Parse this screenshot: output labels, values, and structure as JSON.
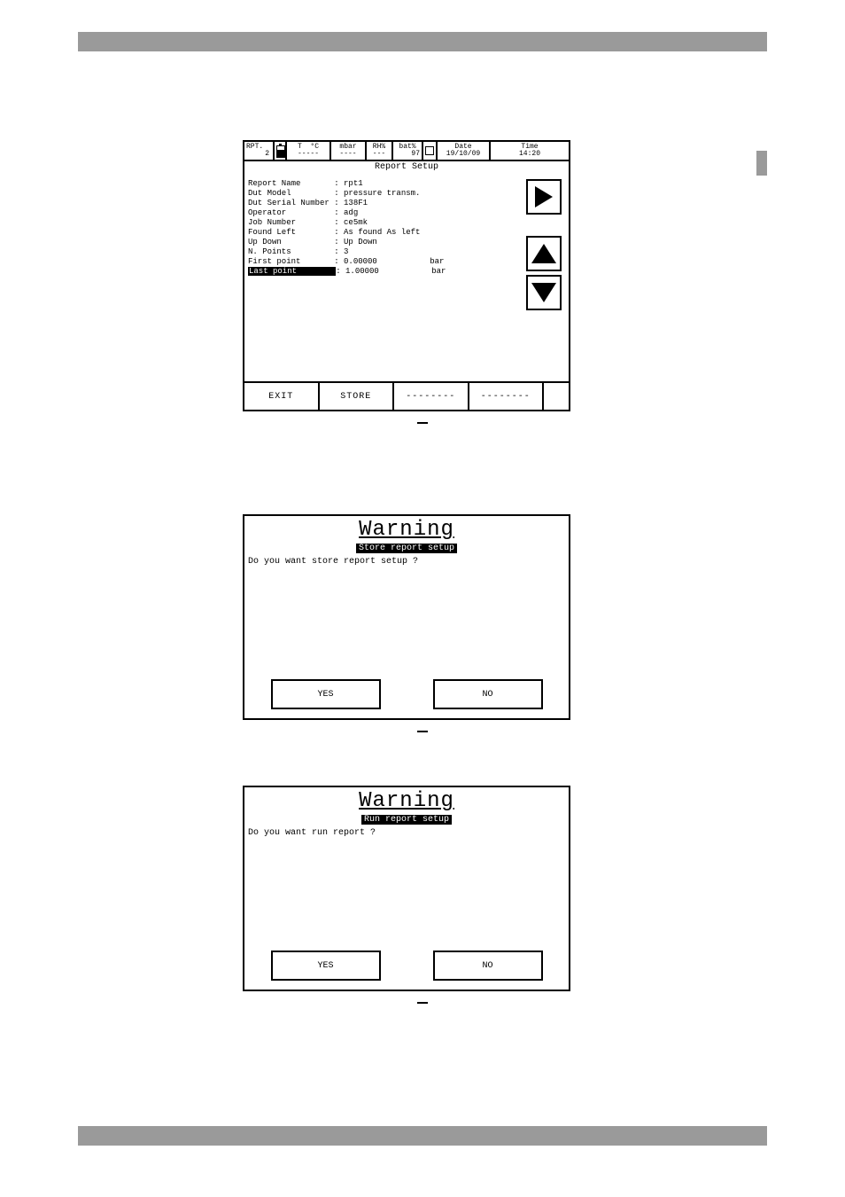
{
  "status": {
    "rpt_label": "RPT.",
    "rpt_value": "2",
    "t_label": "T",
    "t_unit": "°C",
    "t_value": "-----",
    "p_unit": "mbar",
    "p_value": "----",
    "rh_label": "RH%",
    "rh_value": "---",
    "bat_label": "bat%",
    "bat_value": "97",
    "date_label": "Date",
    "date_value": "19/10/09",
    "time_label": "Time",
    "time_value": "14:20"
  },
  "report": {
    "title": "Report Setup",
    "rows": [
      {
        "label": "Report Name",
        "value": "rpt1",
        "unit": ""
      },
      {
        "label": "Dut Model",
        "value": "pressure transm.",
        "unit": ""
      },
      {
        "label": "Dut Serial Number",
        "value": "138F1",
        "unit": ""
      },
      {
        "label": "Operator",
        "value": "adg",
        "unit": ""
      },
      {
        "label": "Job Number",
        "value": "ce5mk",
        "unit": ""
      },
      {
        "label": "Found Left",
        "value": "As found As left",
        "unit": ""
      },
      {
        "label": "Up Down",
        "value": "Up Down",
        "unit": ""
      },
      {
        "label": "N. Points",
        "value": "3",
        "unit": ""
      },
      {
        "label": "First point",
        "value": "0.00000",
        "unit": "bar"
      },
      {
        "label": "Last point",
        "value": "1.00000",
        "unit": "bar",
        "highlight": true
      }
    ],
    "softkeys": [
      "EXIT",
      "STORE",
      "--------",
      "--------",
      ""
    ]
  },
  "dlg_store": {
    "title": "Warning",
    "sub": "Store report setup",
    "msg": "Do you want store report setup ?",
    "yes": "YES",
    "no": "NO"
  },
  "dlg_run": {
    "title": "Warning",
    "sub": "Run report setup",
    "msg": "Do you want run report ?",
    "yes": "YES",
    "no": "NO"
  }
}
